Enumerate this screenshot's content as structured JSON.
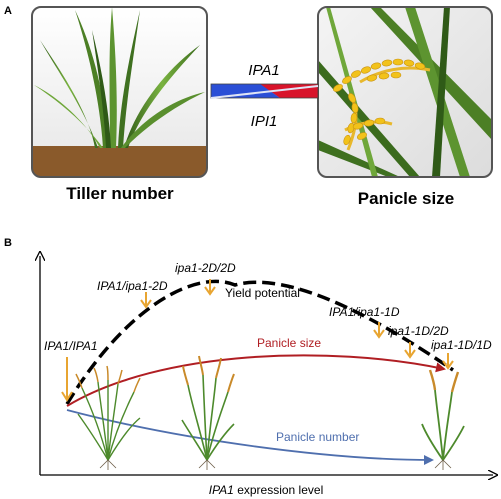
{
  "panel_a": {
    "label": "A",
    "left_caption": "Tiller number",
    "right_caption": "Panicle size",
    "arrow_top_label": "IPA1",
    "arrow_bottom_label": "IPI1"
  },
  "panel_b": {
    "label": "B",
    "x_axis_label_italic": "IPA1",
    "x_axis_label_rest": " expression level",
    "curves": {
      "yield": "Yield potential",
      "panicle_size": "Panicle size",
      "panicle_number": "Panicle number"
    },
    "genotypes": {
      "g1": "IPA1/IPA1",
      "g2": "IPA1/ipa1-2D",
      "g3": "ipa1-2D/2D",
      "g4": "IPA1/ipa1-1D",
      "g5": "ipa1-1D/2D",
      "g6": "ipa1-1D/1D"
    },
    "colors": {
      "yield": "#000000",
      "panicle_size": "#b01e23",
      "panicle_number": "#4f6fae",
      "markers": "#e8a531"
    }
  }
}
